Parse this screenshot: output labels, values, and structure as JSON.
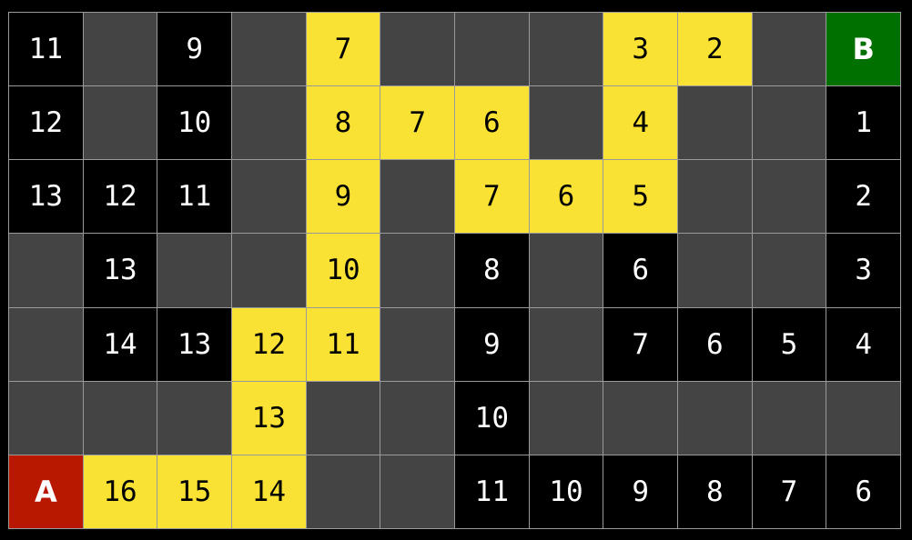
{
  "colors": {
    "wall": "#444444",
    "visited": "#000000",
    "path": "#f9e233",
    "start": "#b81800",
    "goal": "#007000",
    "grid_line": "#9a9a9a"
  },
  "grid": {
    "rows": [
      [
        {
          "t": "visited",
          "v": "11"
        },
        {
          "t": "wall",
          "v": ""
        },
        {
          "t": "visited",
          "v": "9"
        },
        {
          "t": "wall",
          "v": ""
        },
        {
          "t": "path",
          "v": "7"
        },
        {
          "t": "wall",
          "v": ""
        },
        {
          "t": "wall",
          "v": ""
        },
        {
          "t": "wall",
          "v": ""
        },
        {
          "t": "path",
          "v": "3"
        },
        {
          "t": "path",
          "v": "2"
        },
        {
          "t": "wall",
          "v": ""
        },
        {
          "t": "goal",
          "v": "B"
        }
      ],
      [
        {
          "t": "visited",
          "v": "12"
        },
        {
          "t": "wall",
          "v": ""
        },
        {
          "t": "visited",
          "v": "10"
        },
        {
          "t": "wall",
          "v": ""
        },
        {
          "t": "path",
          "v": "8"
        },
        {
          "t": "path",
          "v": "7"
        },
        {
          "t": "path",
          "v": "6"
        },
        {
          "t": "wall",
          "v": ""
        },
        {
          "t": "path",
          "v": "4"
        },
        {
          "t": "wall",
          "v": ""
        },
        {
          "t": "wall",
          "v": ""
        },
        {
          "t": "visited",
          "v": "1"
        }
      ],
      [
        {
          "t": "visited",
          "v": "13"
        },
        {
          "t": "visited",
          "v": "12"
        },
        {
          "t": "visited",
          "v": "11"
        },
        {
          "t": "wall",
          "v": ""
        },
        {
          "t": "path",
          "v": "9"
        },
        {
          "t": "wall",
          "v": ""
        },
        {
          "t": "path",
          "v": "7"
        },
        {
          "t": "path",
          "v": "6"
        },
        {
          "t": "path",
          "v": "5"
        },
        {
          "t": "wall",
          "v": ""
        },
        {
          "t": "wall",
          "v": ""
        },
        {
          "t": "visited",
          "v": "2"
        }
      ],
      [
        {
          "t": "wall",
          "v": ""
        },
        {
          "t": "visited",
          "v": "13"
        },
        {
          "t": "wall",
          "v": ""
        },
        {
          "t": "wall",
          "v": ""
        },
        {
          "t": "path",
          "v": "10"
        },
        {
          "t": "wall",
          "v": ""
        },
        {
          "t": "visited",
          "v": "8"
        },
        {
          "t": "wall",
          "v": ""
        },
        {
          "t": "visited",
          "v": "6"
        },
        {
          "t": "wall",
          "v": ""
        },
        {
          "t": "wall",
          "v": ""
        },
        {
          "t": "visited",
          "v": "3"
        }
      ],
      [
        {
          "t": "wall",
          "v": ""
        },
        {
          "t": "visited",
          "v": "14"
        },
        {
          "t": "visited",
          "v": "13"
        },
        {
          "t": "path",
          "v": "12"
        },
        {
          "t": "path",
          "v": "11"
        },
        {
          "t": "wall",
          "v": ""
        },
        {
          "t": "visited",
          "v": "9"
        },
        {
          "t": "wall",
          "v": ""
        },
        {
          "t": "visited",
          "v": "7"
        },
        {
          "t": "visited",
          "v": "6"
        },
        {
          "t": "visited",
          "v": "5"
        },
        {
          "t": "visited",
          "v": "4"
        }
      ],
      [
        {
          "t": "wall",
          "v": ""
        },
        {
          "t": "wall",
          "v": ""
        },
        {
          "t": "wall",
          "v": ""
        },
        {
          "t": "path",
          "v": "13"
        },
        {
          "t": "wall",
          "v": ""
        },
        {
          "t": "wall",
          "v": ""
        },
        {
          "t": "visited",
          "v": "10"
        },
        {
          "t": "wall",
          "v": ""
        },
        {
          "t": "wall",
          "v": ""
        },
        {
          "t": "wall",
          "v": ""
        },
        {
          "t": "wall",
          "v": ""
        },
        {
          "t": "wall",
          "v": ""
        }
      ],
      [
        {
          "t": "start",
          "v": "A"
        },
        {
          "t": "path",
          "v": "16"
        },
        {
          "t": "path",
          "v": "15"
        },
        {
          "t": "path",
          "v": "14"
        },
        {
          "t": "wall",
          "v": ""
        },
        {
          "t": "wall",
          "v": ""
        },
        {
          "t": "visited",
          "v": "11"
        },
        {
          "t": "visited",
          "v": "10"
        },
        {
          "t": "visited",
          "v": "9"
        },
        {
          "t": "visited",
          "v": "8"
        },
        {
          "t": "visited",
          "v": "7"
        },
        {
          "t": "visited",
          "v": "6"
        }
      ]
    ]
  }
}
